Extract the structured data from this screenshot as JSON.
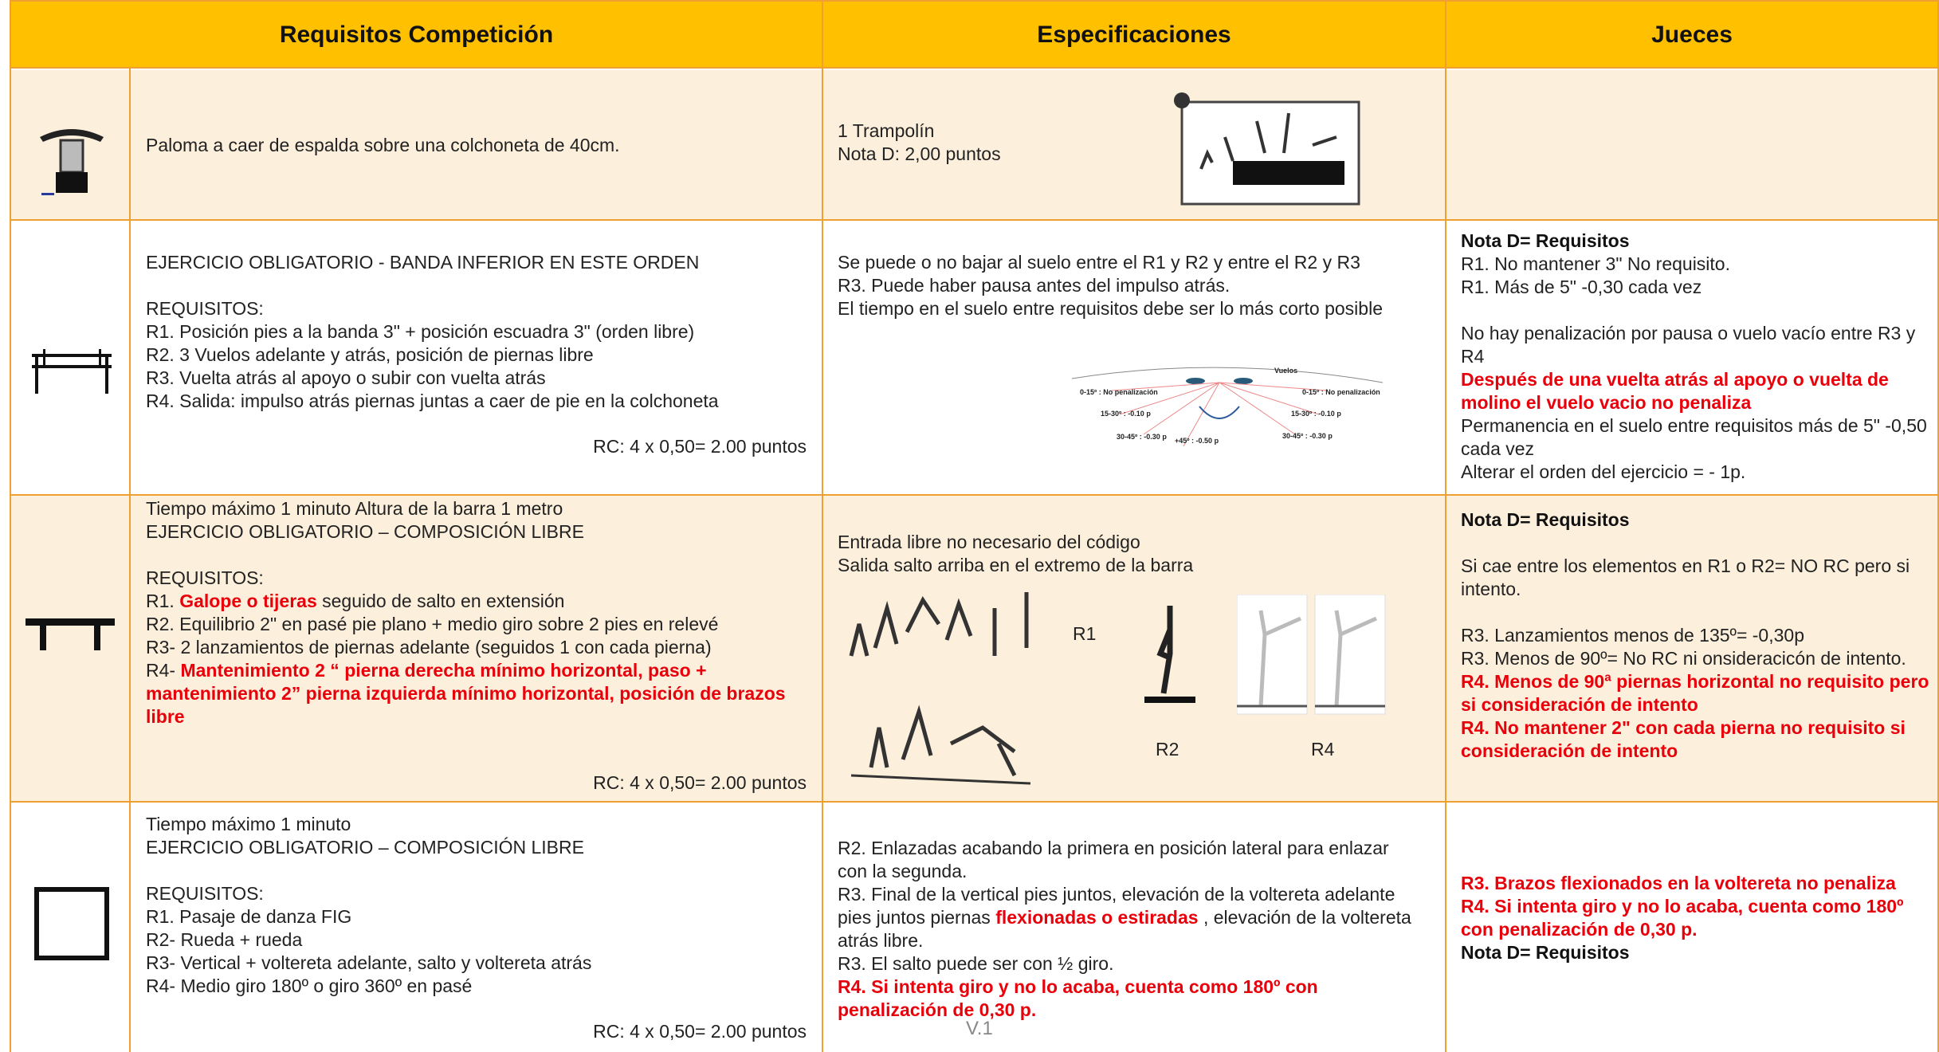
{
  "header": {
    "col1": "Requisitos Competición",
    "col2": "Especificaciones",
    "col3": "Jueces"
  },
  "rows": [
    {
      "requisitos": [
        [
          [
            "Paloma a caer de espalda sobre una colchoneta de  40cm."
          ]
        ]
      ],
      "especificaciones": [
        [
          [
            "1 Trampolín"
          ],
          [
            "Nota D: 2,00 puntos"
          ]
        ]
      ]
    },
    {
      "requisitos": [
        [
          [
            "EJERCICIO OBLIGATORIO - BANDA INFERIOR EN ESTE ORDEN"
          ]
        ],
        [
          [
            "REQUISITOS:"
          ],
          [
            "R1. Posición pies a la banda 3\" + posición escuadra 3\" (orden libre)"
          ],
          [
            "R2. 3 Vuelos adelante y atrás, posición de piernas libre"
          ],
          [
            "R3. Vuelta atrás al apoyo o subir con vuelta atrás"
          ],
          [
            "R4. Salida: impulso atrás piernas juntas a caer de pie en la colchoneta"
          ]
        ]
      ],
      "rc": "RC: 4 x 0,50= 2.00 puntos",
      "especificaciones": [
        [
          [
            "Se puede o no bajar al suelo entre el R1 y R2 y entre el R2 y R3"
          ],
          [
            "R3. Puede haber pausa antes del impulso atrás."
          ],
          [
            "El tiempo en el suelo entre requisitos debe ser lo más corto posible"
          ]
        ]
      ],
      "figure_labels": [
        "Vuelos",
        "0-15º : No penalización",
        "15-30º : -0.10 p",
        "30-45º : -0.30 p",
        "+45º : -0.50 p",
        "0-15º : No penalización",
        "15-30º : -0.10 p",
        "30-45º : -0.30 p"
      ],
      "jueces": [
        [
          [
            {
              "text": "Nota D= Requisitos",
              "style": "bold"
            }
          ],
          [
            "R1. No mantener 3\" No requisito."
          ],
          [
            "R1. Más de 5\" -0,30 cada vez"
          ]
        ],
        [
          [
            "No hay penalización por pausa o vuelo vacío entre  R3 y R4"
          ],
          [
            {
              "text": "Después de una vuelta atrás al apoyo o vuelta de molino el vuelo vacio no penaliza",
              "style": "red"
            }
          ],
          [
            "Permanencia en el suelo entre requisitos más de 5\" -0,50 cada vez"
          ],
          [
            "Alterar el orden del ejercicio = - 1p."
          ]
        ]
      ]
    },
    {
      "requisitos": [
        [
          [
            "Tiempo máximo 1 minuto Altura de la barra 1 metro"
          ],
          [
            "EJERCICIO OBLIGATORIO – COMPOSICIÓN LIBRE"
          ]
        ],
        [
          [
            "REQUISITOS:"
          ],
          [
            "R1. ",
            {
              "text": "Galope o tijeras",
              "style": "red"
            },
            " seguido de salto en extensión"
          ],
          [
            "R2. Equilibrio 2\" en pasé pie plano + medio giro sobre 2 pies en relevé"
          ],
          [
            "R3- 2 lanzamientos de piernas adelante (seguidos 1 con cada pierna)"
          ],
          [
            "R4- ",
            {
              "text": "Mantenimiento 2 “ pierna derecha mínimo horizontal, paso + mantenimiento 2” pierna izquierda mínimo horizontal, posición de brazos libre",
              "style": "red"
            }
          ]
        ]
      ],
      "rc": "RC: 4 x 0,50= 2.00 puntos",
      "especificaciones": [
        [
          [
            "Entrada libre no necesario del código"
          ],
          [
            "Salida salto arriba en el extremo de la barra"
          ]
        ]
      ],
      "figure_labels": [
        "R1",
        "R2",
        "R4"
      ],
      "jueces": [
        [
          [
            {
              "text": "Nota D= Requisitos",
              "style": "bold"
            }
          ]
        ],
        [
          [
            "Si cae entre los elementos en R1 o R2= NO RC pero si intento."
          ]
        ],
        [
          [
            "R3. Lanzamientos menos de 135º= -0,30p"
          ],
          [
            "R3. Menos de 90º= No RC ni onsideracicón de intento."
          ],
          [
            {
              "text": "R4. Menos de 90ª piernas horizontal no requisito pero si consideración de intento",
              "style": "red"
            }
          ],
          [
            {
              "text": "R4. No mantener 2\" con cada pierna no requisito si consideración de intento",
              "style": "red"
            }
          ]
        ]
      ]
    },
    {
      "requisitos": [
        [
          [
            "Tiempo máximo 1 minuto"
          ],
          [
            "EJERCICIO OBLIGATORIO – COMPOSICIÓN LIBRE"
          ]
        ],
        [
          [
            "REQUISITOS:"
          ],
          [
            "R1. Pasaje de danza FIG"
          ],
          [
            "R2- Rueda + rueda"
          ],
          [
            "R3- Vertical +  voltereta adelante, salto y voltereta atrás"
          ],
          [
            "R4- Medio giro 180º o giro 360º en pasé"
          ]
        ]
      ],
      "rc": "RC: 4 x 0,50= 2.00 puntos",
      "especificaciones": [
        [
          [
            "R2. Enlazadas acabando la primera en posición lateral para enlazar con la segunda."
          ],
          [
            "R3. Final de la vertical pies juntos, elevación de la voltereta adelante pies juntos piernas ",
            {
              "text": "flexionadas o estiradas",
              "style": "red"
            },
            " , elevación de la voltereta atrás libre."
          ],
          [
            "R3. El salto puede ser con ½ giro."
          ],
          [
            {
              "text": "R4. Si intenta giro y no lo acaba, cuenta como 180º con penalización de 0,30 p.",
              "style": "red"
            }
          ]
        ]
      ],
      "jueces": [
        [
          [
            {
              "text": "R3. Brazos flexionados en la voltereta no penaliza",
              "style": "red"
            }
          ],
          [
            {
              "text": "R4. Si intenta giro y no lo acaba, cuenta como 180º con penalización de 0,30 p.",
              "style": "red"
            }
          ],
          [
            {
              "text": "Nota D= Requisitos",
              "style": "bold"
            }
          ]
        ]
      ]
    }
  ],
  "footer": "V.1"
}
